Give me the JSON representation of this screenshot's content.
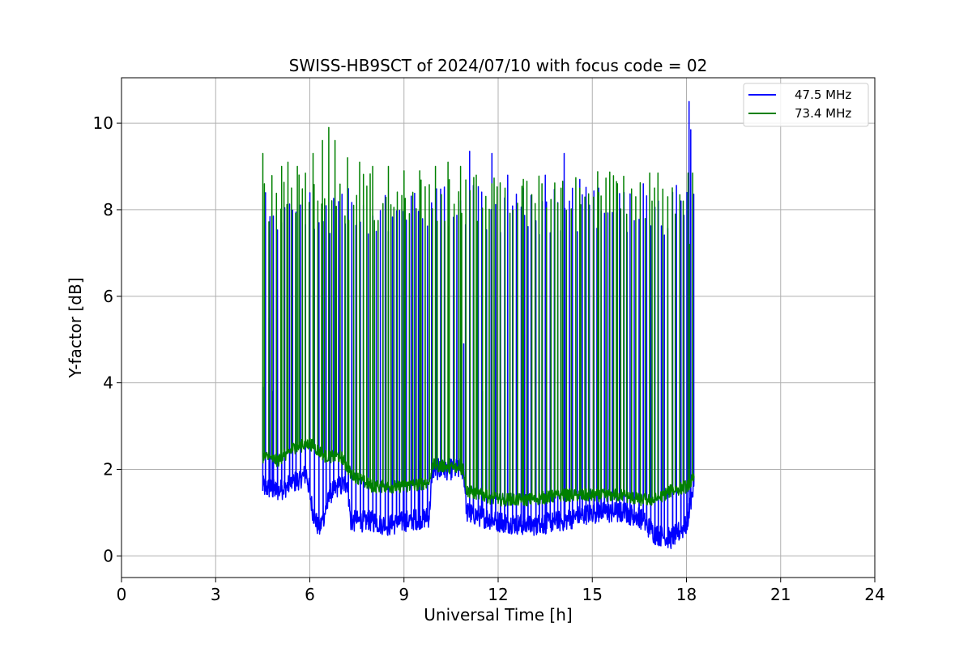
{
  "chart_data": {
    "type": "line",
    "title": "SWISS-HB9SCT of 2024/07/10 with focus code = 02",
    "xlabel": "Universal Time [h]",
    "ylabel": "Y-factor [dB]",
    "xlim": [
      0,
      24
    ],
    "ylim": [
      -0.5,
      11.05
    ],
    "xticks": [
      0,
      3,
      6,
      9,
      12,
      15,
      18,
      21,
      24
    ],
    "xtick_labels": [
      "0",
      "3",
      "6",
      "9",
      "12",
      "15",
      "18",
      "21",
      "24"
    ],
    "yticks": [
      0,
      2,
      4,
      6,
      8,
      10
    ],
    "ytick_labels": [
      "0",
      "2",
      "4",
      "6",
      "8",
      "10"
    ],
    "grid": true,
    "legend_position": "top-right",
    "series": [
      {
        "name": "47.5 MHz",
        "color": "#0000ff",
        "baseline": [
          [
            4.5,
            1.6
          ],
          [
            5.0,
            1.5
          ],
          [
            5.5,
            1.7
          ],
          [
            5.9,
            1.9
          ],
          [
            6.1,
            1.0
          ],
          [
            6.3,
            0.6
          ],
          [
            6.7,
            1.5
          ],
          [
            7.2,
            1.7
          ],
          [
            7.3,
            0.8
          ],
          [
            8.0,
            0.8
          ],
          [
            8.5,
            0.7
          ],
          [
            9.0,
            0.8
          ],
          [
            9.8,
            0.9
          ],
          [
            9.9,
            2.0
          ],
          [
            10.9,
            2.0
          ],
          [
            11.0,
            1.0
          ],
          [
            12.0,
            0.8
          ],
          [
            13.0,
            0.7
          ],
          [
            14.0,
            0.8
          ],
          [
            15.0,
            1.0
          ],
          [
            16.0,
            1.0
          ],
          [
            16.5,
            0.9
          ],
          [
            17.0,
            0.5
          ],
          [
            17.5,
            0.4
          ],
          [
            18.0,
            0.7
          ],
          [
            18.25,
            1.7
          ]
        ],
        "noise": 0.25,
        "peaks": [
          [
            4.5,
            3.9
          ],
          [
            4.7,
            5.5
          ],
          [
            4.8,
            3.8
          ],
          [
            6.2,
            0.7
          ],
          [
            9.0,
            2.6
          ],
          [
            9.5,
            2.2
          ],
          [
            10.9,
            4.9
          ],
          [
            11.1,
            9.35
          ],
          [
            11.5,
            3.8
          ],
          [
            11.8,
            9.3
          ],
          [
            12.3,
            8.8
          ],
          [
            12.8,
            8.5
          ],
          [
            13.5,
            8.8
          ],
          [
            14.1,
            9.3
          ],
          [
            14.6,
            8.7
          ],
          [
            15.2,
            8.5
          ],
          [
            16.0,
            8.4
          ],
          [
            16.6,
            8.6
          ],
          [
            17.1,
            8.2
          ],
          [
            18.0,
            8.4
          ],
          [
            18.08,
            10.5
          ],
          [
            18.15,
            9.85
          ]
        ],
        "pulse_period": 0.12,
        "pulse_level": 8.0
      },
      {
        "name": "73.4 MHz",
        "color": "#008000",
        "baseline": [
          [
            4.5,
            2.3
          ],
          [
            5.0,
            2.2
          ],
          [
            5.5,
            2.5
          ],
          [
            6.0,
            2.6
          ],
          [
            6.5,
            2.3
          ],
          [
            7.0,
            2.3
          ],
          [
            7.3,
            1.9
          ],
          [
            8.0,
            1.6
          ],
          [
            9.0,
            1.6
          ],
          [
            9.8,
            1.7
          ],
          [
            9.9,
            2.1
          ],
          [
            10.9,
            2.0
          ],
          [
            11.0,
            1.5
          ],
          [
            12.0,
            1.3
          ],
          [
            13.0,
            1.3
          ],
          [
            14.0,
            1.4
          ],
          [
            15.0,
            1.4
          ],
          [
            16.0,
            1.4
          ],
          [
            16.5,
            1.3
          ],
          [
            17.0,
            1.3
          ],
          [
            17.5,
            1.5
          ],
          [
            18.0,
            1.6
          ],
          [
            18.25,
            1.8
          ]
        ],
        "noise": 0.15,
        "peaks": [
          [
            4.5,
            9.3
          ],
          [
            4.55,
            8.6
          ],
          [
            5.1,
            9.0
          ],
          [
            5.3,
            9.1
          ],
          [
            5.6,
            9.0
          ],
          [
            6.1,
            9.3
          ],
          [
            6.4,
            9.6
          ],
          [
            6.6,
            9.9
          ],
          [
            6.8,
            9.6
          ],
          [
            7.2,
            9.2
          ],
          [
            7.6,
            9.1
          ],
          [
            8.0,
            9.0
          ],
          [
            8.5,
            9.0
          ],
          [
            9.0,
            8.9
          ],
          [
            9.5,
            8.9
          ],
          [
            10.0,
            9.0
          ],
          [
            10.4,
            9.1
          ],
          [
            10.8,
            9.0
          ],
          [
            11.3,
            8.8
          ],
          [
            11.8,
            8.6
          ],
          [
            12.2,
            8.5
          ],
          [
            12.8,
            8.7
          ],
          [
            13.4,
            8.6
          ],
          [
            14.0,
            8.5
          ],
          [
            14.6,
            8.5
          ],
          [
            15.2,
            8.4
          ],
          [
            15.8,
            8.6
          ],
          [
            16.4,
            8.3
          ],
          [
            16.9,
            8.2
          ],
          [
            17.4,
            8.3
          ],
          [
            17.9,
            8.2
          ],
          [
            18.1,
            7.2
          ]
        ],
        "pulse_period": 0.12,
        "pulse_level": 8.3
      }
    ]
  }
}
